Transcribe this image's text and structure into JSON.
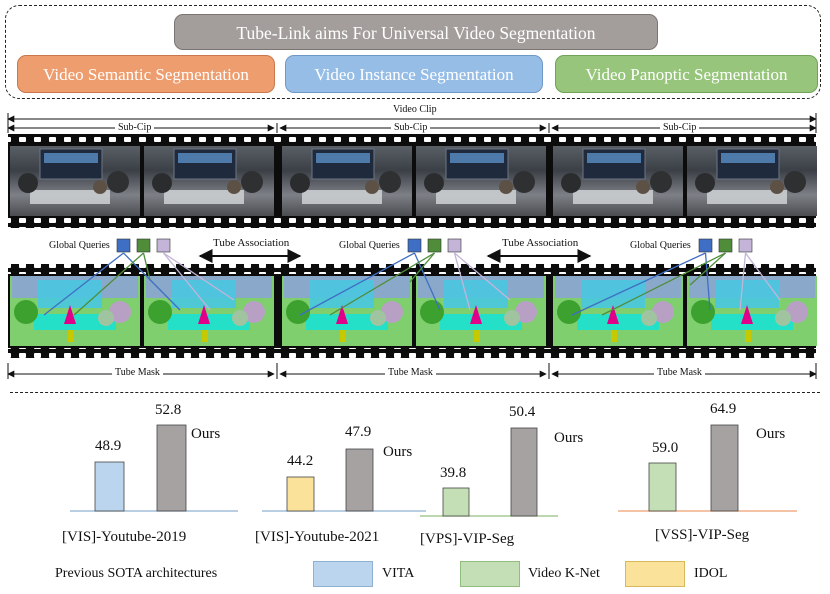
{
  "header": {
    "title": "Tube-Link aims For Universal Video Segmentation",
    "tasks": [
      {
        "label": "Video Semantic Segmentation",
        "color": "#ee9d6e"
      },
      {
        "label": "Video Instance Segmentation",
        "color": "#96bde6"
      },
      {
        "label": "Video Panoptic Segmentation",
        "color": "#96c57b"
      }
    ]
  },
  "diagram": {
    "video_clip_label": "Video Clip",
    "sub_clip_label": "Sub-Cip",
    "global_queries_label": "Global Queries",
    "tube_association_label": "Tube Association",
    "tube_mask_label": "Tube Mask",
    "query_colors": [
      "#3f6fc4",
      "#4f8d3a",
      "#c4b4d8"
    ]
  },
  "chart_data": [
    {
      "type": "bar",
      "title": "",
      "xlabel": "[VIS]-Youtube-2019",
      "categories": [
        "VITA",
        "Ours"
      ],
      "values": [
        48.9,
        52.8
      ],
      "colors": [
        "#bcd5ee",
        "#a5a2a1"
      ],
      "ylim": [
        0,
        60
      ]
    },
    {
      "type": "bar",
      "title": "",
      "xlabel": "[VIS]-Youtube-2021",
      "categories": [
        "IDOL",
        "Ours"
      ],
      "values": [
        44.2,
        47.9
      ],
      "colors": [
        "#fbe29a",
        "#a5a2a1"
      ],
      "ylim": [
        0,
        60
      ]
    },
    {
      "type": "bar",
      "title": "",
      "xlabel": "[VPS]-VIP-Seg",
      "categories": [
        "Video K-Net",
        "Ours"
      ],
      "values": [
        39.8,
        50.4
      ],
      "colors": [
        "#c4dfb5",
        "#a5a2a1"
      ],
      "ylim": [
        0,
        60
      ]
    },
    {
      "type": "bar",
      "title": "",
      "xlabel": "[VSS]-VIP-Seg",
      "categories": [
        "Video K-Net",
        "Ours"
      ],
      "values": [
        59.0,
        64.9
      ],
      "colors": [
        "#c4dfb5",
        "#a5a2a1"
      ],
      "ylim": [
        0,
        80
      ]
    }
  ],
  "ours_label": "Ours",
  "legend": {
    "title": "Previous SOTA architectures",
    "items": [
      {
        "label": "VITA",
        "color": "#bcd5ee"
      },
      {
        "label": "Video K-Net",
        "color": "#c4dfb5"
      },
      {
        "label": "IDOL",
        "color": "#fbe29a"
      }
    ]
  }
}
